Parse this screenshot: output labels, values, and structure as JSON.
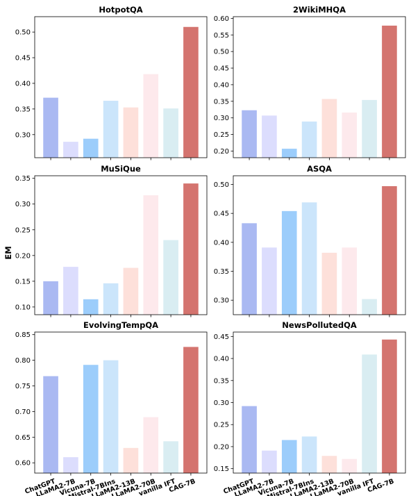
{
  "ylabel": "EM",
  "categories": [
    "ChatGPT",
    "LLaMA2-7B",
    "Vicuna-7B",
    "Mistral-7BIns",
    "LLaMA2-13B",
    "LLaMA2-70B",
    "vanilla IFT",
    "CAG-7B"
  ],
  "bar_colors": [
    "#aab9f2",
    "#dcddfd",
    "#9ccdfb",
    "#cbe5fb",
    "#fde0da",
    "#fde9ec",
    "#d9edf2",
    "#d4746f"
  ],
  "chart_data": [
    {
      "type": "bar",
      "title": "HotpotQA",
      "ylim": [
        0.255,
        0.53
      ],
      "ticks": [
        0.3,
        0.35,
        0.4,
        0.45,
        0.5
      ],
      "tick_labels": [
        "0.30",
        "0.35",
        "0.40",
        "0.45",
        "0.50"
      ],
      "values": [
        0.372,
        0.286,
        0.292,
        0.366,
        0.353,
        0.418,
        0.351,
        0.51
      ]
    },
    {
      "type": "bar",
      "title": "2WikiMHQA",
      "ylim": [
        0.18,
        0.605
      ],
      "ticks": [
        0.2,
        0.25,
        0.3,
        0.35,
        0.4,
        0.45,
        0.5,
        0.55,
        0.6
      ],
      "tick_labels": [
        "0.20",
        "0.25",
        "0.30",
        "0.35",
        "0.40",
        "0.45",
        "0.50",
        "0.55",
        "0.60"
      ],
      "values": [
        0.323,
        0.307,
        0.207,
        0.289,
        0.357,
        0.316,
        0.354,
        0.578
      ]
    },
    {
      "type": "bar",
      "title": "MuSiQue",
      "ylim": [
        0.085,
        0.355
      ],
      "ticks": [
        0.1,
        0.15,
        0.2,
        0.25,
        0.3,
        0.35
      ],
      "tick_labels": [
        "0.10",
        "0.15",
        "0.20",
        "0.25",
        "0.30",
        "0.35"
      ],
      "values": [
        0.15,
        0.178,
        0.115,
        0.146,
        0.176,
        0.317,
        0.23,
        0.34
      ]
    },
    {
      "type": "bar",
      "title": "ASQA",
      "ylim": [
        0.275,
        0.515
      ],
      "ticks": [
        0.3,
        0.35,
        0.4,
        0.45,
        0.5
      ],
      "tick_labels": [
        "0.30",
        "0.35",
        "0.40",
        "0.45",
        "0.50"
      ],
      "values": [
        0.433,
        0.391,
        0.454,
        0.469,
        0.382,
        0.391,
        0.302,
        0.497
      ]
    },
    {
      "type": "bar",
      "title": "EvolvingTempQA",
      "ylim": [
        0.58,
        0.855
      ],
      "ticks": [
        0.6,
        0.65,
        0.7,
        0.75,
        0.8,
        0.85
      ],
      "tick_labels": [
        "0.60",
        "0.65",
        "0.70",
        "0.75",
        "0.80",
        "0.85"
      ],
      "values": [
        0.769,
        0.611,
        0.791,
        0.8,
        0.629,
        0.689,
        0.642,
        0.826
      ]
    },
    {
      "type": "bar",
      "title": "NewsPollutedQA",
      "ylim": [
        0.14,
        0.46
      ],
      "ticks": [
        0.15,
        0.2,
        0.25,
        0.3,
        0.35,
        0.4,
        0.45
      ],
      "tick_labels": [
        "0.15",
        "0.20",
        "0.25",
        "0.30",
        "0.35",
        "0.40",
        "0.45"
      ],
      "values": [
        0.292,
        0.191,
        0.215,
        0.223,
        0.179,
        0.172,
        0.409,
        0.443
      ]
    }
  ]
}
